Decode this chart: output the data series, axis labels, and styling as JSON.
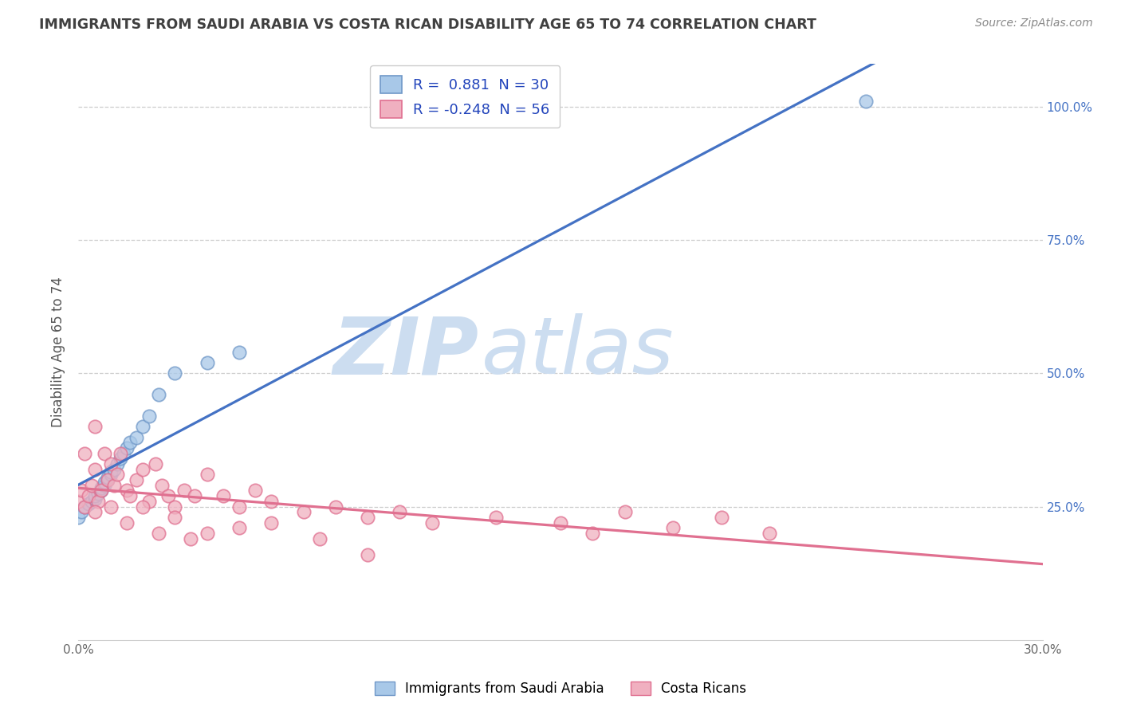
{
  "title": "IMMIGRANTS FROM SAUDI ARABIA VS COSTA RICAN DISABILITY AGE 65 TO 74 CORRELATION CHART",
  "source": "Source: ZipAtlas.com",
  "ylabel": "Disability Age 65 to 74",
  "x_min": 0.0,
  "x_max": 0.3,
  "y_min": 0.0,
  "y_max": 1.08,
  "x_tick_vals": [
    0.0,
    0.05,
    0.1,
    0.15,
    0.2,
    0.25,
    0.3
  ],
  "x_tick_labels": [
    "0.0%",
    "",
    "",
    "",
    "",
    "",
    "30.0%"
  ],
  "y_tick_vals": [
    0.25,
    0.5,
    0.75,
    1.0
  ],
  "y_tick_labels": [
    "25.0%",
    "50.0%",
    "75.0%",
    "100.0%"
  ],
  "legend_label_saudi": "R =  0.881  N = 30",
  "legend_label_costa": "R = -0.248  N = 56",
  "legend_labels_bottom": [
    "Immigrants from Saudi Arabia",
    "Costa Ricans"
  ],
  "line_saudi_color": "#4472c4",
  "line_costa_color": "#e07090",
  "scatter_saudi_facecolor": "#a8c8e8",
  "scatter_saudi_edgecolor": "#7098c8",
  "scatter_costa_facecolor": "#f0b0c0",
  "scatter_costa_edgecolor": "#e07090",
  "watermark_zip_color": "#ccddf0",
  "watermark_atlas_color": "#ccddf0",
  "background_color": "#ffffff",
  "grid_color": "#c8c8c8",
  "title_color": "#404040",
  "source_color": "#888888",
  "legend_text_color": "#2244bb",
  "yaxis_tick_color": "#4472c4",
  "saudi_x": [
    0.0,
    0.001,
    0.002,
    0.003,
    0.004,
    0.005,
    0.005,
    0.006,
    0.007,
    0.007,
    0.008,
    0.008,
    0.009,
    0.009,
    0.01,
    0.01,
    0.011,
    0.012,
    0.013,
    0.014,
    0.015,
    0.016,
    0.018,
    0.02,
    0.022,
    0.025,
    0.03,
    0.04,
    0.05,
    0.245
  ],
  "saudi_y": [
    0.23,
    0.24,
    0.25,
    0.255,
    0.26,
    0.265,
    0.27,
    0.275,
    0.28,
    0.285,
    0.29,
    0.295,
    0.3,
    0.305,
    0.31,
    0.315,
    0.32,
    0.33,
    0.34,
    0.35,
    0.36,
    0.37,
    0.38,
    0.4,
    0.42,
    0.46,
    0.5,
    0.52,
    0.54,
    1.01
  ],
  "costa_x": [
    0.0,
    0.001,
    0.002,
    0.002,
    0.003,
    0.004,
    0.005,
    0.005,
    0.006,
    0.007,
    0.008,
    0.009,
    0.01,
    0.011,
    0.012,
    0.013,
    0.015,
    0.016,
    0.018,
    0.02,
    0.022,
    0.024,
    0.026,
    0.028,
    0.03,
    0.033,
    0.036,
    0.04,
    0.045,
    0.05,
    0.055,
    0.06,
    0.07,
    0.08,
    0.09,
    0.1,
    0.11,
    0.13,
    0.15,
    0.16,
    0.17,
    0.185,
    0.2,
    0.215,
    0.005,
    0.01,
    0.015,
    0.02,
    0.025,
    0.03,
    0.035,
    0.04,
    0.05,
    0.06,
    0.075,
    0.09
  ],
  "costa_y": [
    0.26,
    0.28,
    0.25,
    0.35,
    0.27,
    0.29,
    0.32,
    0.4,
    0.26,
    0.28,
    0.35,
    0.3,
    0.33,
    0.29,
    0.31,
    0.35,
    0.28,
    0.27,
    0.3,
    0.32,
    0.26,
    0.33,
    0.29,
    0.27,
    0.25,
    0.28,
    0.27,
    0.31,
    0.27,
    0.25,
    0.28,
    0.26,
    0.24,
    0.25,
    0.23,
    0.24,
    0.22,
    0.23,
    0.22,
    0.2,
    0.24,
    0.21,
    0.23,
    0.2,
    0.24,
    0.25,
    0.22,
    0.25,
    0.2,
    0.23,
    0.19,
    0.2,
    0.21,
    0.22,
    0.19,
    0.16
  ]
}
